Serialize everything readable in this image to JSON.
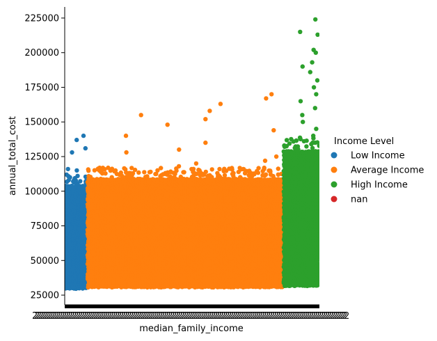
{
  "chart_data": {
    "type": "scatter",
    "subtype": "strip",
    "xlabel": "median_family_income",
    "ylabel": "annual_total_cost",
    "ylim": [
      18000,
      233000
    ],
    "yticks": [
      25000,
      50000,
      75000,
      100000,
      125000,
      150000,
      175000,
      200000,
      225000
    ],
    "ytick_labels": [
      "25000",
      "50000",
      "75000",
      "100000",
      "125000",
      "150000",
      "175000",
      "200000",
      "225000"
    ],
    "xtick_labels_overlapping": "2",
    "grid": false,
    "legend": {
      "title": "Income Level",
      "position": "right",
      "entries": [
        {
          "label": "Low Income",
          "color": "#1f77b4"
        },
        {
          "label": "Average Income",
          "color": "#ff7f0e"
        },
        {
          "label": "High Income",
          "color": "#2ca02c"
        },
        {
          "label": "nan",
          "color": "#d62728"
        }
      ]
    },
    "series": [
      {
        "name": "Low Income",
        "color": "#1f77b4",
        "x_share": [
          0.0,
          0.09
        ],
        "y_range": [
          30000,
          105000
        ],
        "outliers_y": [
          108000,
          110000,
          112000,
          115000,
          116000,
          128000,
          131000,
          137000,
          140000
        ]
      },
      {
        "name": "Average Income",
        "color": "#ff7f0e",
        "x_share": [
          0.09,
          0.86
        ],
        "y_range": [
          31000,
          110000
        ],
        "outliers_y": [
          115000,
          118000,
          120000,
          122000,
          125000,
          128000,
          130000,
          135000,
          140000,
          144000,
          148000,
          152000,
          155000,
          158000,
          163000,
          167000,
          170000
        ]
      },
      {
        "name": "High Income",
        "color": "#2ca02c",
        "x_share": [
          0.86,
          1.0
        ],
        "y_range": [
          32000,
          130000
        ],
        "outliers_y": [
          135000,
          140000,
          145000,
          150000,
          155000,
          160000,
          165000,
          170000,
          175000,
          180000,
          186000,
          190000,
          193000,
          200000,
          202000,
          213000,
          215000,
          224000
        ]
      },
      {
        "name": "nan",
        "color": "#d62728",
        "x_share": [],
        "y_range": [],
        "outliers_y": []
      }
    ]
  }
}
